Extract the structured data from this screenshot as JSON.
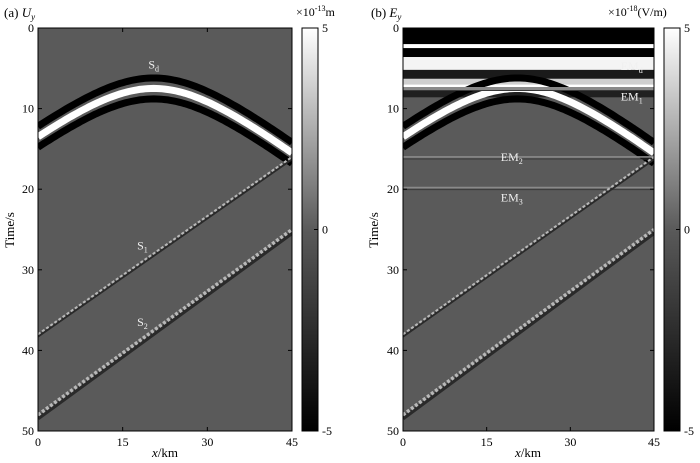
{
  "chart_data": [
    {
      "type": "heatmap",
      "panel_label": "(a)",
      "title_symbol": "U",
      "title_sub": "y",
      "xlabel_italic": "x",
      "xlabel_unit": "/km",
      "ylabel": "Time/s",
      "xlim": [
        0,
        45
      ],
      "ylim": [
        50,
        0
      ],
      "x_ticks": [
        "0",
        "15",
        "30",
        "45"
      ],
      "y_ticks": [
        "0",
        "10",
        "20",
        "30",
        "40",
        "50"
      ],
      "colorbar": {
        "prefix": "×10",
        "exponent": "-13",
        "unit": "m",
        "ticks": [
          "5",
          "0",
          "-5"
        ],
        "range": [
          -5,
          5
        ]
      },
      "colormap": "gray",
      "events": [
        {
          "name": "Sd",
          "kind": "hyperbola",
          "apex_x_km": 20.5,
          "apex_t_s": 7.5,
          "edge_t_left_s": 13.5,
          "edge_t_right_s": 15.5,
          "strength": 5
        },
        {
          "name": "S1",
          "kind": "linear",
          "from": [
            0,
            38
          ],
          "to": [
            45,
            16
          ],
          "strength": 2
        },
        {
          "name": "S2",
          "kind": "linear",
          "from": [
            0,
            48
          ],
          "to": [
            45,
            25
          ],
          "strength": 3
        }
      ],
      "annotations": [
        {
          "base": "S",
          "sub": "d",
          "x_km": 20.5,
          "t_s": 5.0
        },
        {
          "base": "S",
          "sub": "1",
          "x_km": 18.5,
          "t_s": 27.5
        },
        {
          "base": "S",
          "sub": "2",
          "x_km": 18.5,
          "t_s": 37.0
        }
      ]
    },
    {
      "type": "heatmap",
      "panel_label": "(b)",
      "title_symbol": "E",
      "title_sub": "y",
      "xlabel_italic": "x",
      "xlabel_unit": "/km",
      "ylabel": "Time/s",
      "xlim": [
        0,
        45
      ],
      "ylim": [
        50,
        0
      ],
      "x_ticks": [
        "0",
        "15",
        "30",
        "45"
      ],
      "y_ticks": [
        "0",
        "10",
        "20",
        "30",
        "40",
        "50"
      ],
      "colorbar": {
        "prefix": "×10",
        "exponent": "-18",
        "unit": "(V/m)",
        "ticks": [
          "5",
          "0",
          "-5"
        ],
        "range": [
          -5,
          5
        ]
      },
      "colormap": "gray",
      "events": [
        {
          "name": "EMd",
          "kind": "hyperbola",
          "apex_x_km": 20.5,
          "apex_t_s": 7.5,
          "edge_t_left_s": 13.5,
          "edge_t_right_s": 15.5,
          "strength": 5
        },
        {
          "name": "EM1",
          "kind": "horizontal",
          "t_s": 7.5,
          "strength": 4
        },
        {
          "name": "EM2",
          "kind": "horizontal",
          "t_s": 16.0,
          "strength": 1
        },
        {
          "name": "EM3",
          "kind": "horizontal",
          "t_s": 19.8,
          "strength": 1
        },
        {
          "name": "S1",
          "kind": "linear",
          "from": [
            0,
            38
          ],
          "to": [
            45,
            16
          ],
          "strength": 2
        },
        {
          "name": "S2",
          "kind": "linear",
          "from": [
            0,
            48
          ],
          "to": [
            45,
            25
          ],
          "strength": 3
        }
      ],
      "annotations": [
        {
          "base": "EM",
          "sub": "d",
          "x_km": 41.0,
          "t_s": 5.2
        },
        {
          "base": "EM",
          "sub": "1",
          "x_km": 41.0,
          "t_s": 9.0
        },
        {
          "base": "EM",
          "sub": "2",
          "x_km": 19.5,
          "t_s": 16.5
        },
        {
          "base": "EM",
          "sub": "3",
          "x_km": 19.5,
          "t_s": 21.5
        }
      ]
    }
  ]
}
